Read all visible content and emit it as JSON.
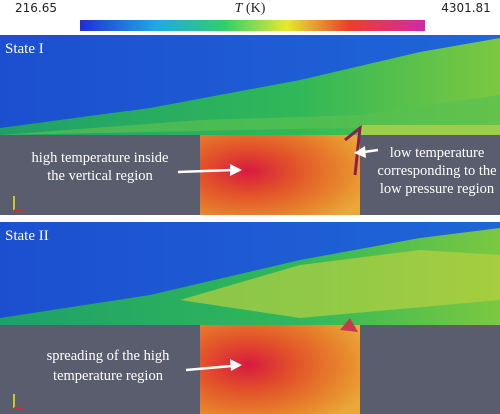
{
  "colorbar": {
    "min": 216.65,
    "max": 4301.81,
    "symbol": "T",
    "unit": "(K)"
  },
  "panels": [
    {
      "label": "State I",
      "annotations": [
        {
          "lines": [
            "high temperature inside",
            "the vertical region"
          ]
        },
        {
          "lines": [
            "low temperature",
            "corresponding to the",
            "low pressure region"
          ]
        }
      ]
    },
    {
      "label": "State II",
      "annotations": [
        {
          "lines": [
            "spreading of the high",
            "temperature region"
          ]
        }
      ]
    }
  ]
}
